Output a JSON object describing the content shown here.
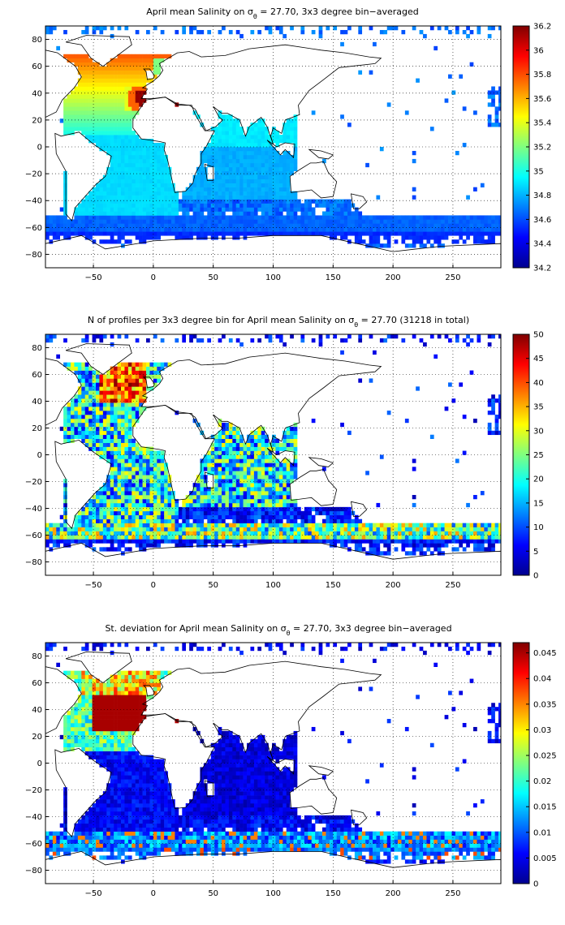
{
  "chart_data": [
    {
      "type": "heatmap",
      "title_prefix": "April mean Salinity on σ",
      "title_sub": "θ",
      "title_suffix": " = 27.70, 3x3 degree bin−averaged",
      "xlim": [
        -90,
        290
      ],
      "ylim": [
        -90,
        90
      ],
      "xticks": [
        -50,
        0,
        50,
        100,
        150,
        200,
        250
      ],
      "yticks": [
        80,
        60,
        40,
        20,
        0,
        -20,
        -40,
        -60,
        -80
      ],
      "grid": true,
      "colormap": "jet",
      "clim": [
        34.2,
        36.2
      ],
      "colorbar_ticks": [
        "36.2",
        "36",
        "35.8",
        "35.6",
        "35.4",
        "35.2",
        "35",
        "34.8",
        "34.6",
        "34.4",
        "34.2"
      ],
      "colorbar_tick_values": [
        36.2,
        36.0,
        35.8,
        35.6,
        35.4,
        35.2,
        35.0,
        34.8,
        34.6,
        34.4,
        34.2
      ],
      "field": "salinity"
    },
    {
      "type": "heatmap",
      "title_prefix": "N of profiles per 3x3 degree bin for April mean Salinity on σ",
      "title_sub": "θ",
      "title_suffix": " = 27.70 (31218 in total)",
      "xlim": [
        -90,
        290
      ],
      "ylim": [
        -90,
        90
      ],
      "xticks": [
        -50,
        0,
        50,
        100,
        150,
        200,
        250
      ],
      "yticks": [
        80,
        60,
        40,
        20,
        0,
        -20,
        -40,
        -60,
        -80
      ],
      "grid": true,
      "colormap": "jet",
      "clim": [
        0,
        50
      ],
      "colorbar_ticks": [
        "50",
        "45",
        "40",
        "35",
        "30",
        "25",
        "20",
        "15",
        "10",
        "5",
        "0"
      ],
      "colorbar_tick_values": [
        50,
        45,
        40,
        35,
        30,
        25,
        20,
        15,
        10,
        5,
        0
      ],
      "field": "count"
    },
    {
      "type": "heatmap",
      "title_prefix": "St. deviation for April mean Salinity on σ",
      "title_sub": "θ",
      "title_suffix": " = 27.70, 3x3 degree bin−averaged",
      "xlim": [
        -90,
        290
      ],
      "ylim": [
        -90,
        90
      ],
      "xticks": [
        -50,
        0,
        50,
        100,
        150,
        200,
        250
      ],
      "yticks": [
        80,
        60,
        40,
        20,
        0,
        -20,
        -40,
        -60,
        -80
      ],
      "grid": true,
      "colormap": "jet",
      "clim": [
        0,
        0.047
      ],
      "colorbar_ticks": [
        "0.045",
        "0.04",
        "0.035",
        "0.03",
        "0.025",
        "0.02",
        "0.015",
        "0.01",
        "0.005",
        "0"
      ],
      "colorbar_tick_values": [
        0.045,
        0.04,
        0.035,
        0.03,
        0.025,
        0.02,
        0.015,
        0.01,
        0.005,
        0
      ],
      "field": "stdev"
    }
  ]
}
